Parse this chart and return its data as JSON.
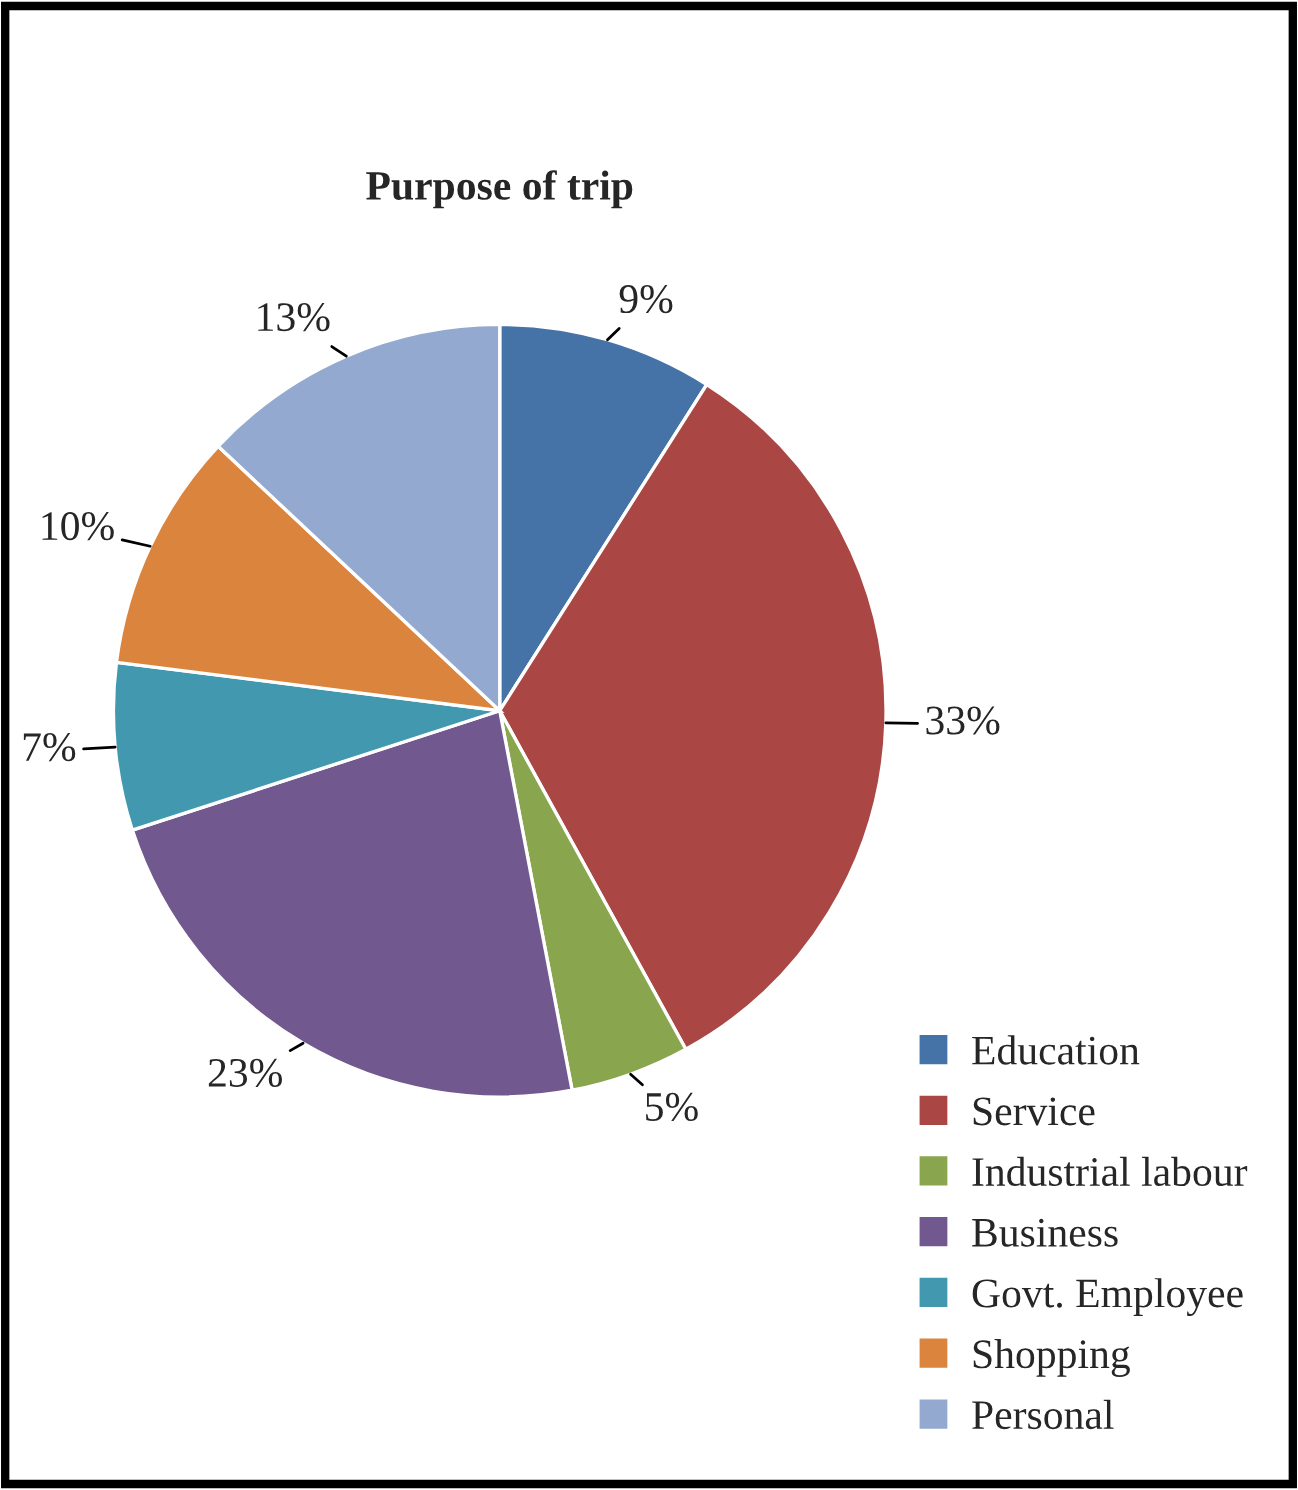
{
  "chart_data": {
    "type": "pie",
    "title": "Purpose of trip",
    "categories": [
      "Education",
      "Service",
      "Industrial labour",
      "Business",
      "Govt. Employee",
      "Shopping",
      "Personal"
    ],
    "values": [
      9,
      33,
      5,
      23,
      7,
      10,
      13
    ],
    "colors": [
      "#4572a7",
      "#aa4643",
      "#89a54e",
      "#71588f",
      "#4198af",
      "#db843d",
      "#93a9cf"
    ],
    "value_labels": [
      "9%",
      "33%",
      "5%",
      "23%",
      "7%",
      "10%",
      "13%"
    ],
    "legend": "bottom right"
  }
}
